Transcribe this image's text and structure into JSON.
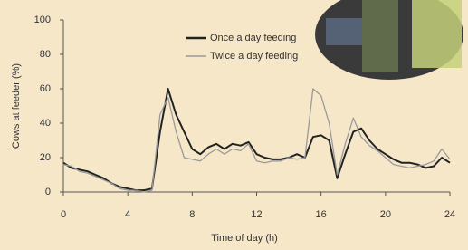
{
  "chart_data": {
    "type": "line",
    "x_label": "Time of day (h)",
    "y_label": "Cows at feeder (%)",
    "x": [
      0,
      0.5,
      1,
      1.5,
      2,
      2.5,
      3,
      3.5,
      4,
      4.5,
      5,
      5.5,
      6,
      6.5,
      7,
      7.5,
      8,
      8.5,
      9,
      9.5,
      10,
      10.5,
      11,
      11.5,
      12,
      12.5,
      13,
      13.5,
      14,
      14.5,
      15,
      15.5,
      16,
      16.5,
      17,
      17.5,
      18,
      18.5,
      19,
      19.5,
      20,
      20.5,
      21,
      21.5,
      22,
      22.5,
      23,
      23.5,
      24
    ],
    "series": [
      {
        "name": "Once a day feeding",
        "color": "#222222",
        "values": [
          17,
          14,
          13,
          12,
          10,
          8,
          5,
          3,
          2,
          1,
          1,
          2,
          35,
          60,
          45,
          35,
          25,
          22,
          26,
          28,
          25,
          28,
          27,
          29,
          22,
          20,
          19,
          19,
          20,
          22,
          20,
          32,
          33,
          30,
          8,
          22,
          35,
          37,
          30,
          25,
          22,
          19,
          17,
          17,
          16,
          14,
          15,
          20,
          17
        ]
      },
      {
        "name": "Twice a day feeding",
        "color": "#9a9a9a",
        "values": [
          16,
          15,
          12,
          11,
          9,
          7,
          5,
          2,
          1,
          1,
          0,
          1,
          45,
          55,
          35,
          20,
          19,
          18,
          22,
          25,
          22,
          25,
          24,
          28,
          18,
          17,
          18,
          18,
          20,
          19,
          20,
          60,
          56,
          40,
          10,
          28,
          43,
          32,
          27,
          24,
          20,
          16,
          15,
          14,
          15,
          16,
          18,
          25,
          19
        ]
      }
    ],
    "xlim": [
      0,
      24
    ],
    "xticks": [
      0,
      4,
      8,
      12,
      16,
      20,
      24
    ],
    "ylim": [
      0,
      100
    ],
    "yticks": [
      0,
      20,
      40,
      60,
      80,
      100
    ]
  }
}
